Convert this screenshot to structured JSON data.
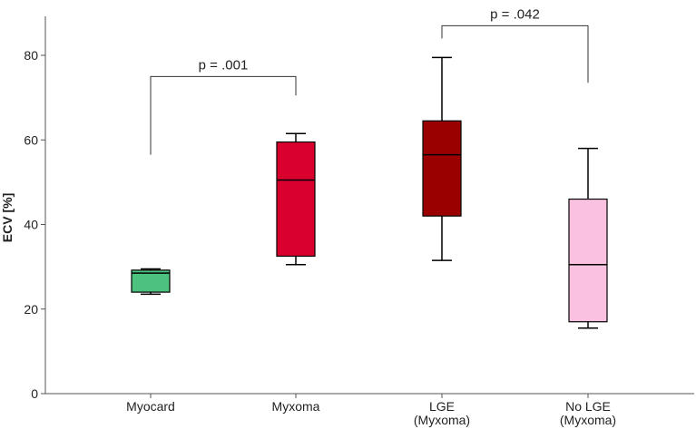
{
  "chart_data": {
    "type": "boxplot",
    "ylabel": "ECV [%]",
    "xlabel": "",
    "ylim": [
      0,
      88
    ],
    "yticks": [
      0,
      20,
      40,
      60,
      80
    ],
    "grid": false,
    "categories": [
      {
        "label": [
          "Myocard"
        ],
        "color": "#4dc17e"
      },
      {
        "label": [
          "Myxoma"
        ],
        "color": "#d9002e"
      },
      {
        "label": [
          "LGE",
          "(Myxoma)"
        ],
        "color": "#9b0000"
      },
      {
        "label": [
          "No LGE",
          "(Myxoma)"
        ],
        "color": "#fbc1e1"
      }
    ],
    "boxes": [
      {
        "min": 23.5,
        "q1": 24.0,
        "median": 28.5,
        "q3": 29.2,
        "max": 29.5
      },
      {
        "min": 30.5,
        "q1": 32.5,
        "median": 50.5,
        "q3": 59.5,
        "max": 61.5
      },
      {
        "min": 31.5,
        "q1": 42.0,
        "median": 56.5,
        "q3": 64.5,
        "max": 79.5
      },
      {
        "min": 15.5,
        "q1": 17.0,
        "median": 30.5,
        "q3": 46.0,
        "max": 58.0
      }
    ],
    "annotations": [
      {
        "text": "p = .001",
        "from": 0,
        "to": 1,
        "bracket_y": 75,
        "left_end": 56.5,
        "right_end": 70.5
      },
      {
        "text": "p = .042",
        "from": 2,
        "to": 3,
        "bracket_y": 87,
        "left_end": 84,
        "right_end": 73.5
      }
    ]
  }
}
